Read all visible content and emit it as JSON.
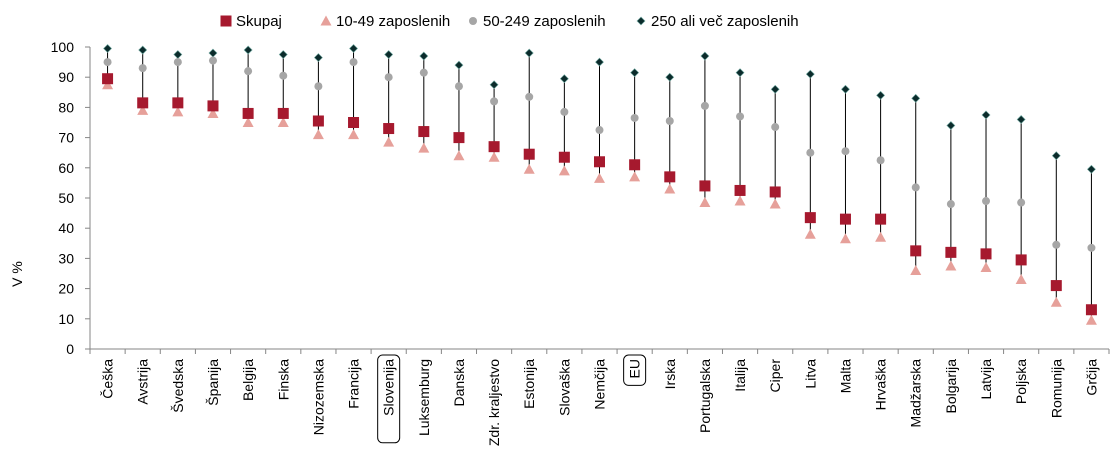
{
  "chart_data": {
    "type": "scatter",
    "ylabel": "V %",
    "ylim": [
      0,
      100
    ],
    "yticks": [
      0,
      10,
      20,
      30,
      40,
      50,
      60,
      70,
      80,
      90,
      100
    ],
    "grid": false,
    "legend_position": "top",
    "categories": [
      "Češka",
      "Avstrija",
      "Švedska",
      "Španija",
      "Belgija",
      "Finska",
      "Nizozemska",
      "Francija",
      "Slovenija",
      "Luksemburg",
      "Danska",
      "Zdr. kraljestvo",
      "Estonija",
      "Slovaška",
      "Nemčija",
      "EU",
      "Irska",
      "Portugalska",
      "Italija",
      "Ciper",
      "Litva",
      "Malta",
      "Hrvaška",
      "Madžarska",
      "Bolgarija",
      "Latvija",
      "Poljska",
      "Romunija",
      "Grčija"
    ],
    "highlighted_categories": [
      "Slovenija",
      "EU"
    ],
    "series": [
      {
        "name": "Skupaj",
        "marker": "square",
        "color": "#A6192E",
        "values": [
          89.5,
          81.5,
          81.5,
          80.5,
          78,
          78,
          75.5,
          75,
          73,
          72,
          70,
          67,
          64.5,
          63.5,
          62,
          61,
          57,
          54,
          52.5,
          52,
          43.5,
          43,
          43,
          32.5,
          32,
          31.5,
          29.5,
          21,
          13
        ]
      },
      {
        "name": "10-49 zaposlenih",
        "marker": "triangle",
        "color": "#E6A09A",
        "values": [
          87.5,
          79,
          78.5,
          78,
          75,
          75,
          71,
          71,
          68.5,
          66.5,
          64,
          63.5,
          59.5,
          59,
          56.5,
          57,
          53,
          48.5,
          49,
          48,
          38,
          36.5,
          37,
          26,
          27.5,
          27,
          23,
          15.5,
          9.5
        ]
      },
      {
        "name": "50-249 zaposlenih",
        "marker": "circle",
        "color": "#A6A6A6",
        "values": [
          95,
          93,
          95,
          95.5,
          92,
          90.5,
          87,
          95,
          90,
          91.5,
          87,
          82,
          83.5,
          78.5,
          72.5,
          76.5,
          75.5,
          80.5,
          77,
          73.5,
          65,
          65.5,
          62.5,
          53.5,
          48,
          49,
          48.5,
          34.5,
          33.5
        ]
      },
      {
        "name": "250 ali več zaposlenih",
        "marker": "diamond",
        "color": "#0B2B2B",
        "values": [
          99.5,
          99,
          97.5,
          98,
          99,
          97.5,
          96.5,
          99.5,
          97.5,
          97,
          94,
          87.5,
          98,
          89.5,
          95,
          91.5,
          90,
          97,
          91.5,
          86,
          91,
          86,
          84,
          83,
          74,
          77.5,
          76,
          64,
          59.5
        ]
      }
    ]
  }
}
